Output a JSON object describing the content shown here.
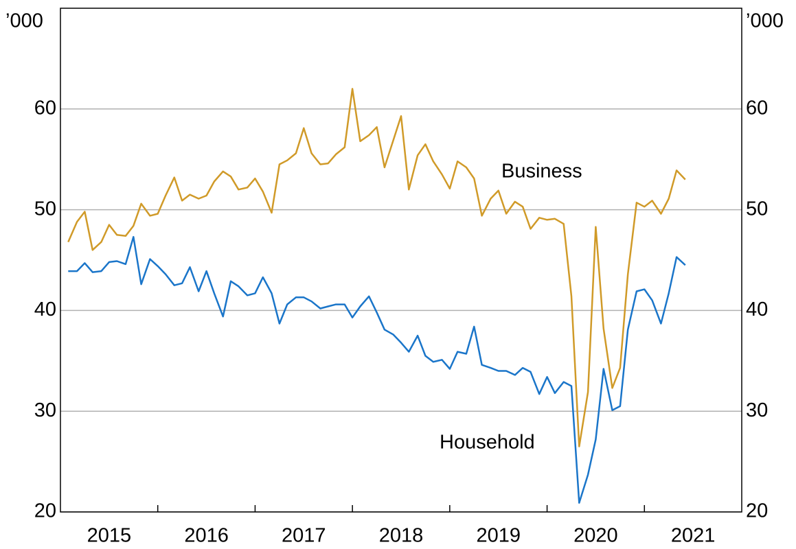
{
  "chart_data": {
    "type": "line",
    "ylabel": "’000",
    "y2label": "’000",
    "x": [
      2015.08,
      2015.17,
      2015.25,
      2015.33,
      2015.42,
      2015.5,
      2015.58,
      2015.67,
      2015.75,
      2015.83,
      2015.92,
      2016.0,
      2016.08,
      2016.17,
      2016.25,
      2016.33,
      2016.42,
      2016.5,
      2016.58,
      2016.67,
      2016.75,
      2016.83,
      2016.92,
      2017.0,
      2017.08,
      2017.17,
      2017.25,
      2017.33,
      2017.42,
      2017.5,
      2017.58,
      2017.67,
      2017.75,
      2017.83,
      2017.92,
      2018.0,
      2018.08,
      2018.17,
      2018.25,
      2018.33,
      2018.42,
      2018.5,
      2018.58,
      2018.67,
      2018.75,
      2018.83,
      2018.92,
      2019.0,
      2019.08,
      2019.17,
      2019.25,
      2019.33,
      2019.42,
      2019.5,
      2019.58,
      2019.67,
      2019.75,
      2019.83,
      2019.92,
      2020.0,
      2020.08,
      2020.17,
      2020.25,
      2020.33,
      2020.42,
      2020.5,
      2020.58,
      2020.67,
      2020.75,
      2020.83,
      2020.92,
      2021.0,
      2021.08,
      2021.17,
      2021.25,
      2021.33,
      2021.42
    ],
    "series": [
      {
        "name": "Business",
        "color": "#d09a28",
        "values": [
          46.8,
          48.8,
          49.8,
          46.0,
          46.8,
          48.5,
          47.5,
          47.4,
          48.4,
          50.6,
          49.4,
          49.6,
          51.4,
          53.2,
          50.9,
          51.5,
          51.1,
          51.4,
          52.8,
          53.8,
          53.3,
          52.0,
          52.2,
          53.1,
          51.8,
          49.7,
          54.5,
          54.9,
          55.6,
          58.1,
          55.6,
          54.5,
          54.6,
          55.5,
          56.2,
          62.0,
          56.8,
          57.4,
          58.2,
          54.2,
          56.9,
          59.3,
          52.0,
          55.4,
          56.5,
          54.8,
          53.5,
          52.1,
          54.8,
          54.2,
          53.1,
          49.4,
          51.1,
          51.9,
          49.6,
          50.8,
          50.3,
          48.1,
          49.2,
          49.0,
          49.1,
          48.6,
          41.4,
          26.5,
          31.9,
          48.3,
          38.2,
          32.3,
          34.3,
          43.6,
          50.7,
          50.3,
          50.9,
          49.6,
          51.1,
          53.9,
          53.0
        ]
      },
      {
        "name": "Household",
        "color": "#1a75c9",
        "values": [
          43.9,
          43.9,
          44.7,
          43.8,
          43.9,
          44.8,
          44.9,
          44.6,
          47.3,
          42.6,
          45.1,
          44.4,
          43.6,
          42.5,
          42.7,
          44.3,
          41.9,
          43.9,
          41.7,
          39.4,
          42.9,
          42.4,
          41.5,
          41.7,
          43.3,
          41.7,
          38.7,
          40.6,
          41.3,
          41.3,
          40.9,
          40.2,
          40.4,
          40.6,
          40.6,
          39.3,
          40.4,
          41.4,
          39.8,
          38.1,
          37.6,
          36.8,
          35.9,
          37.5,
          35.5,
          34.9,
          35.1,
          34.2,
          35.9,
          35.7,
          38.4,
          34.6,
          34.3,
          34.0,
          34.0,
          33.6,
          34.3,
          33.9,
          31.7,
          33.4,
          31.8,
          32.9,
          32.5,
          20.9,
          23.7,
          27.2,
          34.2,
          30.1,
          30.5,
          38.1,
          41.9,
          42.1,
          41.0,
          38.7,
          41.7,
          45.3,
          44.5
        ]
      }
    ],
    "xlim": [
      2015,
      2022
    ],
    "xticks": [
      {
        "value": 2015.5,
        "label": "2015"
      },
      {
        "value": 2016.5,
        "label": "2016"
      },
      {
        "value": 2017.5,
        "label": "2017"
      },
      {
        "value": 2018.5,
        "label": "2018"
      },
      {
        "value": 2019.5,
        "label": "2019"
      },
      {
        "value": 2020.5,
        "label": "2020"
      },
      {
        "value": 2021.5,
        "label": "2021"
      }
    ],
    "ylim": [
      20,
      70
    ],
    "yticks": [
      20,
      30,
      40,
      50,
      60
    ],
    "grid": true
  }
}
